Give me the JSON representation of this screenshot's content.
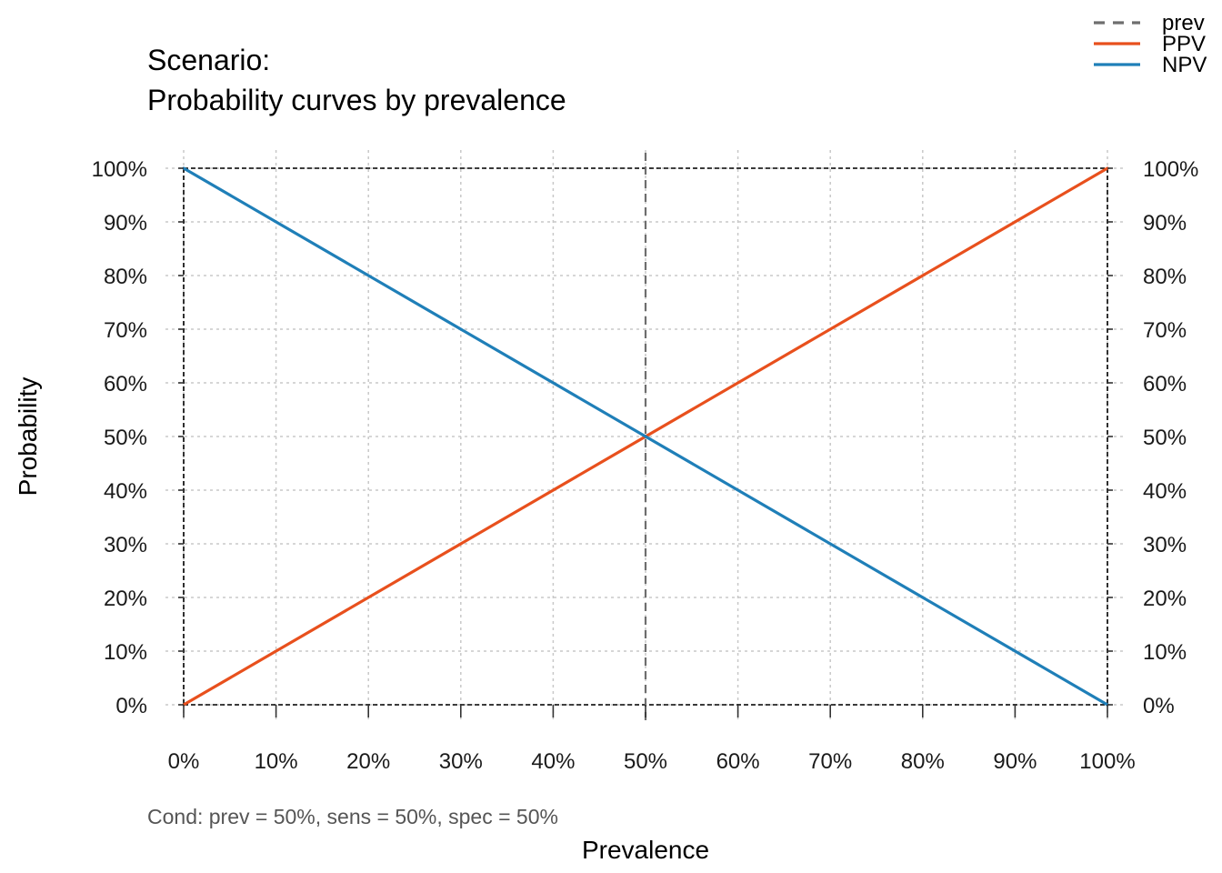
{
  "title_line1": "Scenario:",
  "title_line2": "Probability curves by prevalence",
  "caption": "Cond:  prev = 50%, sens = 50%, spec = 50%",
  "colors": {
    "prev": "#6e6e6e",
    "ppv": "#e8501d",
    "npv": "#1f7fb8",
    "grid": "#c8c8c8",
    "frame": "#000000"
  },
  "chart_data": {
    "type": "line",
    "xlabel": "Prevalence",
    "ylabel": "Probability",
    "xlim": [
      0,
      100
    ],
    "ylim": [
      0,
      100
    ],
    "x_ticks": [
      "0%",
      "10%",
      "20%",
      "30%",
      "40%",
      "50%",
      "60%",
      "70%",
      "80%",
      "90%",
      "100%"
    ],
    "y_ticks": [
      "0%",
      "10%",
      "20%",
      "30%",
      "40%",
      "50%",
      "60%",
      "70%",
      "80%",
      "90%",
      "100%"
    ],
    "grid": true,
    "legend_position": "top-right",
    "vline": {
      "name": "prev",
      "x": 50
    },
    "series": [
      {
        "name": "PPV",
        "x": [
          0,
          100
        ],
        "y": [
          0,
          100
        ]
      },
      {
        "name": "NPV",
        "x": [
          0,
          100
        ],
        "y": [
          100,
          0
        ]
      }
    ],
    "legend": [
      "prev",
      "PPV",
      "NPV"
    ]
  }
}
